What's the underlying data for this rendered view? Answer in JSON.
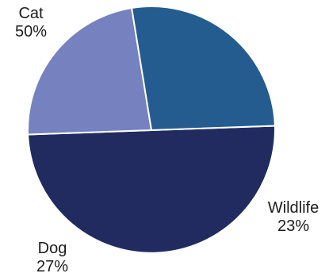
{
  "chart_data": {
    "type": "pie",
    "title": "",
    "categories": [
      "Cat",
      "Wildlife",
      "Dog"
    ],
    "values": [
      50,
      23,
      27
    ],
    "value_labels": [
      "50%",
      "23%",
      "27%"
    ],
    "colors": [
      "#222b60",
      "#7681bf",
      "#255c8f"
    ],
    "start_angle_deg": -2,
    "direction": "clockwise",
    "legend": "none"
  }
}
